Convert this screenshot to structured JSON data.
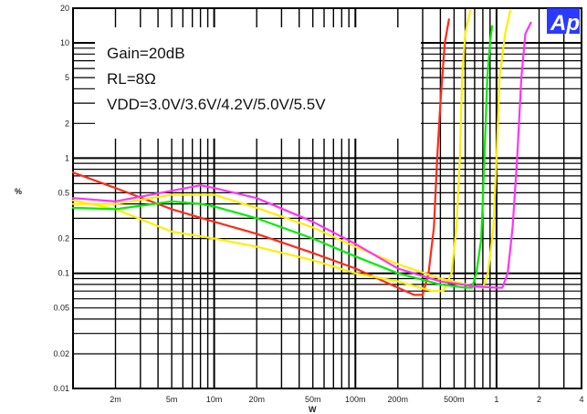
{
  "chart_data": {
    "type": "line",
    "ylabel": "%",
    "xlabel": "W",
    "x_scale": "log",
    "y_scale": "log",
    "xlim": [
      0.001,
      4
    ],
    "ylim": [
      0.01,
      20
    ],
    "x_ticks": [
      {
        "v": 0.002,
        "label": "2m"
      },
      {
        "v": 0.005,
        "label": "5m"
      },
      {
        "v": 0.01,
        "label": "10m"
      },
      {
        "v": 0.02,
        "label": "20m"
      },
      {
        "v": 0.05,
        "label": "50m"
      },
      {
        "v": 0.1,
        "label": "100m"
      },
      {
        "v": 0.2,
        "label": "200m"
      },
      {
        "v": 0.5,
        "label": "500m"
      },
      {
        "v": 1,
        "label": "1"
      },
      {
        "v": 2,
        "label": "2"
      },
      {
        "v": 4,
        "label": "4"
      }
    ],
    "y_ticks": [
      {
        "v": 20,
        "label": "20"
      },
      {
        "v": 10,
        "label": "10"
      },
      {
        "v": 5,
        "label": "5"
      },
      {
        "v": 2,
        "label": "2"
      },
      {
        "v": 1,
        "label": "1"
      },
      {
        "v": 0.5,
        "label": "0.5"
      },
      {
        "v": 0.2,
        "label": "0.2"
      },
      {
        "v": 0.1,
        "label": "0.1"
      },
      {
        "v": 0.05,
        "label": "0.05"
      },
      {
        "v": 0.02,
        "label": "0.02"
      },
      {
        "v": 0.01,
        "label": "0.01"
      }
    ],
    "grid": true,
    "annotations": [
      "Gain=20dB",
      "RL=8Ω",
      "VDD=3.0V/3.6V/4.2V/5.0V/5.5V"
    ],
    "logo": "Ap",
    "series": [
      {
        "color": "#ff2a1a",
        "points": [
          [
            0.001,
            0.75
          ],
          [
            0.002,
            0.55
          ],
          [
            0.005,
            0.36
          ],
          [
            0.01,
            0.28
          ],
          [
            0.02,
            0.22
          ],
          [
            0.05,
            0.15
          ],
          [
            0.1,
            0.11
          ],
          [
            0.2,
            0.075
          ],
          [
            0.26,
            0.065
          ],
          [
            0.3,
            0.065
          ],
          [
            0.33,
            0.1
          ],
          [
            0.36,
            0.25
          ],
          [
            0.38,
            1
          ],
          [
            0.4,
            3
          ],
          [
            0.43,
            10
          ],
          [
            0.46,
            16
          ]
        ]
      },
      {
        "color": "#ffee00",
        "points": [
          [
            0.001,
            0.43
          ],
          [
            0.002,
            0.36
          ],
          [
            0.005,
            0.23
          ],
          [
            0.01,
            0.2
          ],
          [
            0.02,
            0.17
          ],
          [
            0.05,
            0.13
          ],
          [
            0.1,
            0.1
          ],
          [
            0.2,
            0.085
          ],
          [
            0.35,
            0.07
          ],
          [
            0.42,
            0.07
          ],
          [
            0.48,
            0.1
          ],
          [
            0.52,
            0.25
          ],
          [
            0.55,
            1
          ],
          [
            0.57,
            5
          ],
          [
            0.6,
            12
          ],
          [
            0.65,
            19
          ]
        ]
      },
      {
        "color": "#00ee00",
        "points": [
          [
            0.001,
            0.37
          ],
          [
            0.002,
            0.36
          ],
          [
            0.005,
            0.42
          ],
          [
            0.008,
            0.4
          ],
          [
            0.01,
            0.38
          ],
          [
            0.02,
            0.3
          ],
          [
            0.05,
            0.2
          ],
          [
            0.1,
            0.14
          ],
          [
            0.2,
            0.1
          ],
          [
            0.4,
            0.08
          ],
          [
            0.6,
            0.075
          ],
          [
            0.67,
            0.075
          ],
          [
            0.72,
            0.1
          ],
          [
            0.78,
            0.2
          ],
          [
            0.82,
            1
          ],
          [
            0.86,
            5
          ],
          [
            0.9,
            10
          ],
          [
            0.93,
            14
          ]
        ]
      },
      {
        "color": "#ffee00",
        "points": [
          [
            0.001,
            0.4
          ],
          [
            0.002,
            0.4
          ],
          [
            0.005,
            0.48
          ],
          [
            0.01,
            0.48
          ],
          [
            0.02,
            0.37
          ],
          [
            0.05,
            0.25
          ],
          [
            0.1,
            0.17
          ],
          [
            0.2,
            0.12
          ],
          [
            0.4,
            0.09
          ],
          [
            0.7,
            0.077
          ],
          [
            0.8,
            0.075
          ],
          [
            0.87,
            0.1
          ],
          [
            0.95,
            0.25
          ],
          [
            1.0,
            1
          ],
          [
            1.05,
            5
          ],
          [
            1.15,
            12
          ],
          [
            1.25,
            19
          ]
        ]
      },
      {
        "color": "#ff33ff",
        "points": [
          [
            0.001,
            0.45
          ],
          [
            0.002,
            0.42
          ],
          [
            0.005,
            0.52
          ],
          [
            0.008,
            0.58
          ],
          [
            0.01,
            0.55
          ],
          [
            0.02,
            0.45
          ],
          [
            0.05,
            0.28
          ],
          [
            0.1,
            0.18
          ],
          [
            0.2,
            0.11
          ],
          [
            0.4,
            0.085
          ],
          [
            0.7,
            0.077
          ],
          [
            1.0,
            0.075
          ],
          [
            1.1,
            0.075
          ],
          [
            1.2,
            0.1
          ],
          [
            1.3,
            0.25
          ],
          [
            1.4,
            1
          ],
          [
            1.5,
            5
          ],
          [
            1.6,
            12
          ],
          [
            1.75,
            15
          ]
        ]
      }
    ]
  }
}
